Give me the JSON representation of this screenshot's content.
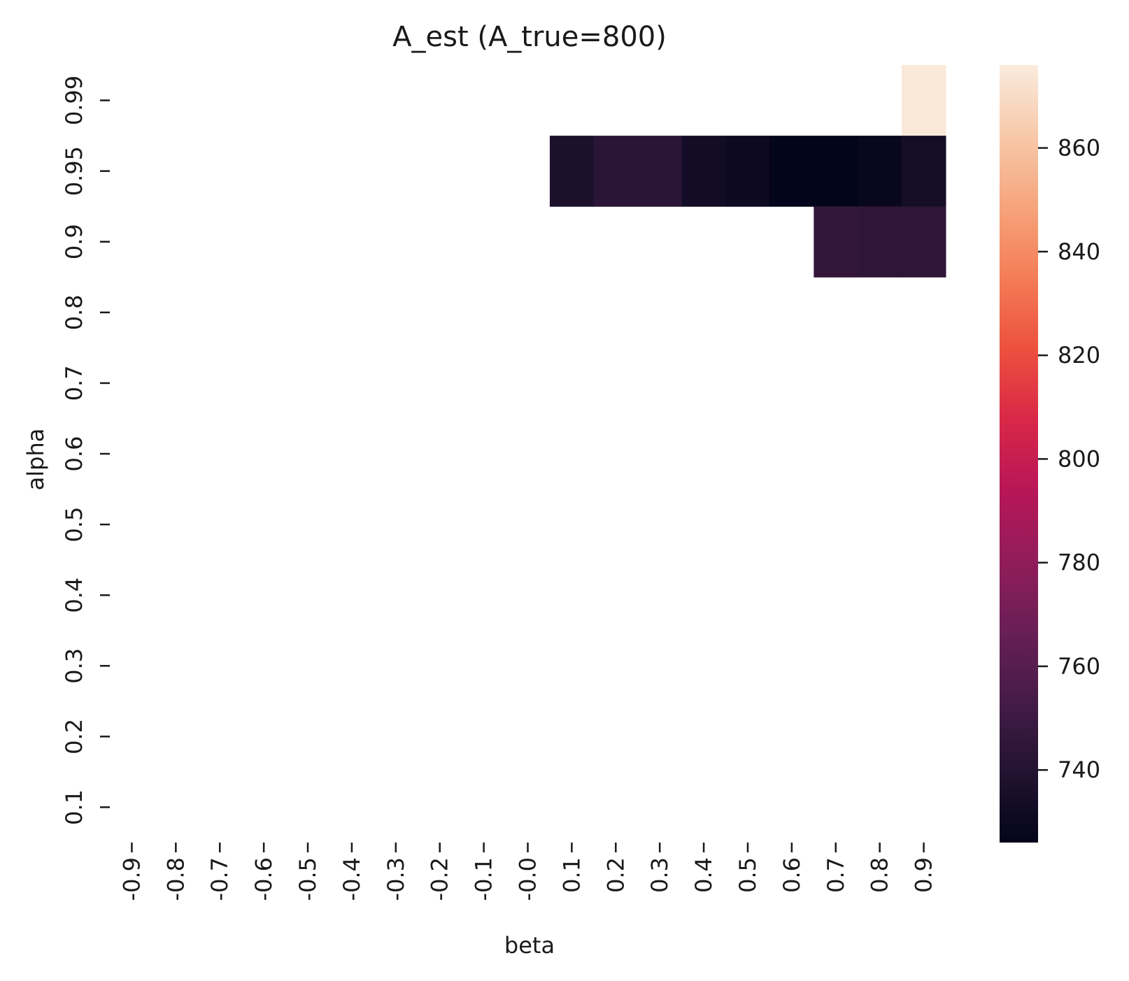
{
  "chart_data": {
    "type": "heatmap",
    "title": "A_est (A_true=800)",
    "xlabel": "beta",
    "ylabel": "alpha",
    "x_categories": [
      "-0.9",
      "-0.8",
      "-0.7",
      "-0.6",
      "-0.5",
      "-0.4",
      "-0.3",
      "-0.2",
      "-0.1",
      "-0.0",
      "0.1",
      "0.2",
      "0.3",
      "0.4",
      "0.5",
      "0.6",
      "0.7",
      "0.8",
      "0.9"
    ],
    "y_categories": [
      "0.99",
      "0.95",
      "0.9",
      "0.8",
      "0.7",
      "0.6",
      "0.5",
      "0.4",
      "0.3",
      "0.2",
      "0.1"
    ],
    "grid": false,
    "missing_values_shown_as": "blank",
    "values": [
      [
        null,
        null,
        null,
        null,
        null,
        null,
        null,
        null,
        null,
        null,
        null,
        null,
        null,
        null,
        null,
        null,
        null,
        null,
        875
      ],
      [
        null,
        null,
        null,
        null,
        null,
        null,
        null,
        null,
        null,
        null,
        737,
        743,
        743,
        733,
        730,
        726,
        726,
        728,
        734
      ],
      [
        null,
        null,
        null,
        null,
        null,
        null,
        null,
        null,
        null,
        null,
        null,
        null,
        null,
        null,
        null,
        null,
        746,
        744,
        744
      ],
      [
        null,
        null,
        null,
        null,
        null,
        null,
        null,
        null,
        null,
        null,
        null,
        null,
        null,
        null,
        null,
        null,
        null,
        null,
        null
      ],
      [
        null,
        null,
        null,
        null,
        null,
        null,
        null,
        null,
        null,
        null,
        null,
        null,
        null,
        null,
        null,
        null,
        null,
        null,
        null
      ],
      [
        null,
        null,
        null,
        null,
        null,
        null,
        null,
        null,
        null,
        null,
        null,
        null,
        null,
        null,
        null,
        null,
        null,
        null,
        null
      ],
      [
        null,
        null,
        null,
        null,
        null,
        null,
        null,
        null,
        null,
        null,
        null,
        null,
        null,
        null,
        null,
        null,
        null,
        null,
        null
      ],
      [
        null,
        null,
        null,
        null,
        null,
        null,
        null,
        null,
        null,
        null,
        null,
        null,
        null,
        null,
        null,
        null,
        null,
        null,
        null
      ],
      [
        null,
        null,
        null,
        null,
        null,
        null,
        null,
        null,
        null,
        null,
        null,
        null,
        null,
        null,
        null,
        null,
        null,
        null,
        null
      ],
      [
        null,
        null,
        null,
        null,
        null,
        null,
        null,
        null,
        null,
        null,
        null,
        null,
        null,
        null,
        null,
        null,
        null,
        null,
        null
      ],
      [
        null,
        null,
        null,
        null,
        null,
        null,
        null,
        null,
        null,
        null,
        null,
        null,
        null,
        null,
        null,
        null,
        null,
        null,
        null
      ]
    ],
    "colorbar": {
      "range": [
        726,
        876
      ],
      "ticks": [
        740,
        760,
        780,
        800,
        820,
        840,
        860
      ],
      "colormap": "rocket",
      "stops": [
        "#03051a",
        "#221331",
        "#451c47",
        "#691f55",
        "#921c5b",
        "#b91657",
        "#d92847",
        "#ed513e",
        "#f47d57",
        "#f6a47c",
        "#f7c9aa",
        "#faebdd"
      ]
    }
  }
}
